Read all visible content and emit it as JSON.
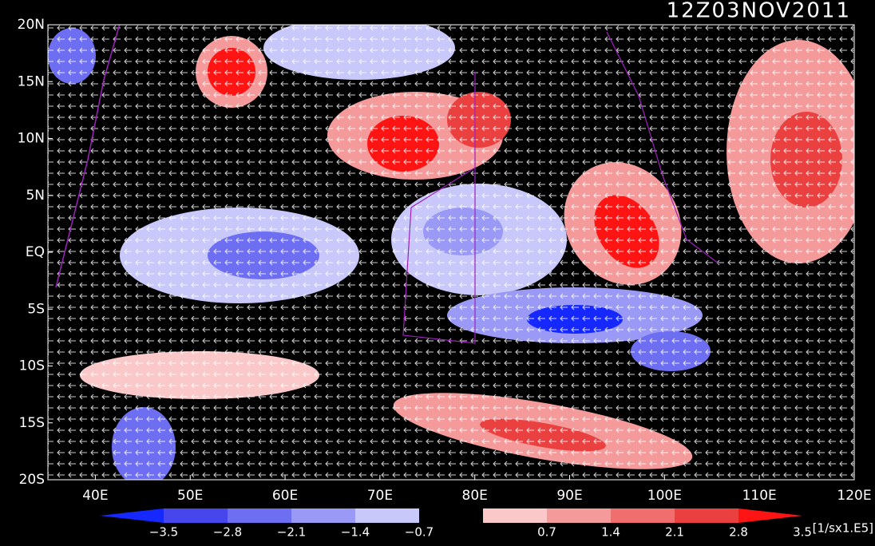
{
  "map": {
    "title": "12Z03NOV2011",
    "lat_labels": [
      "20N",
      "15N",
      "10N",
      "5N",
      "EQ",
      "5S",
      "10S",
      "15S",
      "20S"
    ],
    "lon_labels": [
      "40E",
      "50E",
      "60E",
      "70E",
      "80E",
      "90E",
      "100E",
      "110E",
      "120E"
    ]
  },
  "colorbar": {
    "labels": [
      "−3.5",
      "−2.8",
      "−2.1",
      "−1.4",
      "−0.7",
      "0.7",
      "1.4",
      "2.1",
      "2.8",
      "3.5"
    ],
    "colors": [
      "#1428ff",
      "#4646ec",
      "#6e6ef2",
      "#9a9af6",
      "#c8c8fa",
      "#000000",
      "#fac8c8",
      "#f59a9a",
      "#f06e6e",
      "#ea4040",
      "#ff1414"
    ],
    "unit": "[1/sx1.E5]"
  }
}
